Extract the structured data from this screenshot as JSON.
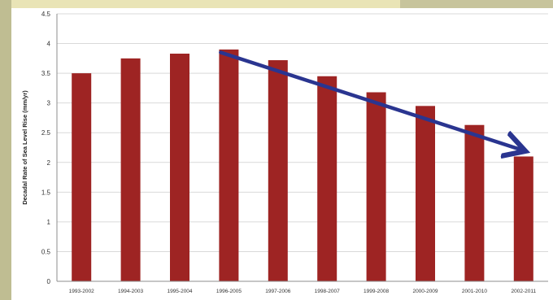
{
  "chart_data": {
    "type": "bar",
    "title": "",
    "xlabel": "",
    "ylabel": "Decadal Rate of Sea Level Rise (mm/yr)",
    "ylim": [
      0,
      4.5
    ],
    "yticks": [
      "0",
      "0.5",
      "1",
      "1.5",
      "2",
      "2.5",
      "3",
      "3.5",
      "4",
      "4.5"
    ],
    "grid": true,
    "legend": "none",
    "categories": [
      "1993-2002",
      "1994-2003",
      "1995-2004",
      "1996-2005",
      "1997-2006",
      "1998-2007",
      "1999-2008",
      "2000-2009",
      "2001-2010",
      "2002-2011"
    ],
    "series": [
      {
        "values": [
          3.5,
          3.75,
          3.83,
          3.9,
          3.72,
          3.45,
          3.18,
          2.95,
          2.63,
          2.1
        ]
      }
    ],
    "colors": {
      "bars": "#9e2423",
      "trend_arrow": "#2a3590",
      "grid": "#d9d9d9"
    },
    "annotations": [
      {
        "type": "trend-arrow",
        "from": {
          "x": "1996-2005",
          "y": 3.85
        },
        "to": {
          "x": "2002-2011",
          "y": 2.1
        }
      }
    ]
  }
}
